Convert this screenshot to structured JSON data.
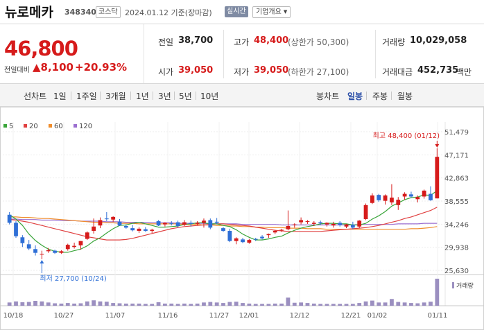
{
  "header": {
    "stock_name": "뉴로메카",
    "stock_code": "348340",
    "market": "코스닥",
    "date_text": "2024.01.12 기준(장마감)",
    "realtime_label": "실시간",
    "company_label": "기업개요"
  },
  "quote": {
    "price": "46,800",
    "change_label": "전일대비",
    "change_abs": "8,100",
    "change_pct": "+20.93%",
    "prev_label": "전일",
    "prev_value": "38,700",
    "high_label": "고가",
    "high_value": "48,400",
    "high_note": "(상한가 50,300)",
    "volume_label": "거래량",
    "volume_value": "10,029,058",
    "open_label": "시가",
    "open_value": "39,050",
    "low_label": "저가",
    "low_value": "39,050",
    "low_note": "(하한가 27,100)",
    "amount_label": "거래대금",
    "amount_value": "452,735",
    "amount_unit": "백만"
  },
  "periods": {
    "line_label": "선차트",
    "line_items": [
      "1일",
      "1주일",
      "3개월",
      "1년",
      "3년",
      "5년",
      "10년"
    ],
    "candle_label": "봉차트",
    "candle_items": [
      "일봉",
      "주봉",
      "월봉"
    ],
    "candle_active": "일봉"
  },
  "colors": {
    "up": "#d61b1b",
    "down": "#2f6fd6",
    "ma5": "#3aa53a",
    "ma20": "#e04040",
    "ma60": "#f08c2a",
    "ma120": "#9b6fd0",
    "volume": "#9b8fc0"
  },
  "chart_data": {
    "type": "candlestick",
    "legend": [
      "5",
      "20",
      "60",
      "120"
    ],
    "y_ticks": [
      "51,479",
      "47,171",
      "42,863",
      "38,555",
      "34,246",
      "29,938",
      "25,630"
    ],
    "ylim": [
      25630,
      51479
    ],
    "x_ticks": [
      "10/18",
      "10/27",
      "11/07",
      "11/16",
      "11/27",
      "12/01",
      "12/12",
      "12/21",
      "01/02",
      "01/11"
    ],
    "high_annotation": "최고 48,400 (01/12)",
    "low_annotation": "최저 27,700 (10/24)",
    "volume_label": "거래량",
    "candles": [
      {
        "o": 36000,
        "h": 36500,
        "l": 34200,
        "c": 34500
      },
      {
        "o": 34500,
        "h": 34800,
        "l": 31700,
        "c": 32000
      },
      {
        "o": 31800,
        "h": 32200,
        "l": 30000,
        "c": 30700
      },
      {
        "o": 30500,
        "h": 31300,
        "l": 29400,
        "c": 29700
      },
      {
        "o": 29600,
        "h": 30300,
        "l": 28400,
        "c": 28900
      },
      {
        "o": 28700,
        "h": 29300,
        "l": 27700,
        "c": 28700
      },
      {
        "o": 29200,
        "h": 29800,
        "l": 28900,
        "c": 29400
      },
      {
        "o": 29300,
        "h": 29500,
        "l": 28700,
        "c": 28900
      },
      {
        "o": 28900,
        "h": 29400,
        "l": 28700,
        "c": 29200
      },
      {
        "o": 29600,
        "h": 30600,
        "l": 29300,
        "c": 30400
      },
      {
        "o": 30000,
        "h": 30800,
        "l": 29700,
        "c": 30200
      },
      {
        "o": 30300,
        "h": 31100,
        "l": 29500,
        "c": 31100
      },
      {
        "o": 31500,
        "h": 32900,
        "l": 31300,
        "c": 32700
      },
      {
        "o": 33000,
        "h": 35300,
        "l": 32500,
        "c": 33800
      },
      {
        "o": 34000,
        "h": 35500,
        "l": 33500,
        "c": 35000
      },
      {
        "o": 35300,
        "h": 36500,
        "l": 34800,
        "c": 35200
      },
      {
        "o": 35100,
        "h": 35700,
        "l": 34700,
        "c": 35600
      },
      {
        "o": 34700,
        "h": 35200,
        "l": 33900,
        "c": 34000
      },
      {
        "o": 33900,
        "h": 34200,
        "l": 33400,
        "c": 33600
      },
      {
        "o": 33500,
        "h": 34100,
        "l": 32900,
        "c": 33100
      },
      {
        "o": 33000,
        "h": 33700,
        "l": 32600,
        "c": 33400
      },
      {
        "o": 33300,
        "h": 33700,
        "l": 32800,
        "c": 33000
      },
      {
        "o": 33000,
        "h": 33400,
        "l": 32600,
        "c": 33200
      },
      {
        "o": 34800,
        "h": 35000,
        "l": 33900,
        "c": 34000
      },
      {
        "o": 34200,
        "h": 34600,
        "l": 33800,
        "c": 34500
      },
      {
        "o": 34400,
        "h": 34800,
        "l": 34000,
        "c": 34300
      },
      {
        "o": 34600,
        "h": 34900,
        "l": 33600,
        "c": 33900
      },
      {
        "o": 34100,
        "h": 35000,
        "l": 33900,
        "c": 34600
      },
      {
        "o": 34500,
        "h": 34900,
        "l": 33800,
        "c": 34300
      },
      {
        "o": 34300,
        "h": 34800,
        "l": 34000,
        "c": 34500
      },
      {
        "o": 34500,
        "h": 35300,
        "l": 33600,
        "c": 34900
      },
      {
        "o": 35000,
        "h": 35300,
        "l": 33300,
        "c": 33600
      },
      {
        "o": 34700,
        "h": 35400,
        "l": 34200,
        "c": 34500
      },
      {
        "o": 33500,
        "h": 33700,
        "l": 32800,
        "c": 33000
      },
      {
        "o": 33000,
        "h": 33400,
        "l": 30900,
        "c": 31100
      },
      {
        "o": 31100,
        "h": 31800,
        "l": 30500,
        "c": 31600
      },
      {
        "o": 31400,
        "h": 31700,
        "l": 30700,
        "c": 30900
      },
      {
        "o": 30800,
        "h": 31500,
        "l": 30600,
        "c": 31300
      },
      {
        "o": 31500,
        "h": 31700,
        "l": 31100,
        "c": 31400
      },
      {
        "o": 31900,
        "h": 32200,
        "l": 31400,
        "c": 31600
      },
      {
        "o": 32200,
        "h": 32500,
        "l": 31700,
        "c": 32400
      },
      {
        "o": 32700,
        "h": 33200,
        "l": 32400,
        "c": 33000
      },
      {
        "o": 33100,
        "h": 33400,
        "l": 32800,
        "c": 33200
      },
      {
        "o": 33300,
        "h": 36800,
        "l": 33100,
        "c": 33900
      },
      {
        "o": 34100,
        "h": 34400,
        "l": 33600,
        "c": 34200
      },
      {
        "o": 34600,
        "h": 35500,
        "l": 34200,
        "c": 35000
      },
      {
        "o": 34700,
        "h": 35000,
        "l": 34300,
        "c": 34800
      },
      {
        "o": 34300,
        "h": 34800,
        "l": 33900,
        "c": 34500
      },
      {
        "o": 34600,
        "h": 34900,
        "l": 34100,
        "c": 34400
      },
      {
        "o": 34200,
        "h": 34600,
        "l": 33800,
        "c": 34500
      },
      {
        "o": 34000,
        "h": 34700,
        "l": 33600,
        "c": 34300
      },
      {
        "o": 34500,
        "h": 34800,
        "l": 33800,
        "c": 34100
      },
      {
        "o": 33800,
        "h": 34300,
        "l": 33500,
        "c": 34200
      },
      {
        "o": 34100,
        "h": 34700,
        "l": 33300,
        "c": 33600
      },
      {
        "o": 33800,
        "h": 35000,
        "l": 33500,
        "c": 34900
      },
      {
        "o": 35200,
        "h": 38100,
        "l": 35000,
        "c": 37800
      },
      {
        "o": 38200,
        "h": 40000,
        "l": 38000,
        "c": 39600
      },
      {
        "o": 39700,
        "h": 39900,
        "l": 38400,
        "c": 38700
      },
      {
        "o": 38600,
        "h": 39800,
        "l": 37900,
        "c": 39600
      },
      {
        "o": 38300,
        "h": 41700,
        "l": 37800,
        "c": 39200
      },
      {
        "o": 37800,
        "h": 39300,
        "l": 36900,
        "c": 38800
      },
      {
        "o": 39400,
        "h": 40200,
        "l": 38800,
        "c": 39900
      },
      {
        "o": 39800,
        "h": 40300,
        "l": 39200,
        "c": 39400
      },
      {
        "o": 38900,
        "h": 39600,
        "l": 38300,
        "c": 39300
      },
      {
        "o": 39400,
        "h": 40700,
        "l": 39000,
        "c": 40500
      },
      {
        "o": 39900,
        "h": 41300,
        "l": 38600,
        "c": 38700
      },
      {
        "o": 39050,
        "h": 48400,
        "l": 39050,
        "c": 46800
      }
    ],
    "volumes": [
      1.2,
      1.6,
      1.3,
      1.4,
      1.8,
      1.6,
      1.2,
      0.9,
      0.8,
      1.0,
      0.8,
      0.9,
      1.6,
      2.0,
      1.6,
      1.5,
      1.0,
      0.9,
      0.8,
      0.8,
      0.8,
      0.7,
      0.7,
      1.3,
      0.8,
      0.8,
      0.7,
      0.8,
      0.7,
      0.8,
      1.2,
      1.4,
      1.2,
      1.0,
      1.4,
      1.5,
      1.0,
      0.8,
      0.7,
      0.7,
      0.7,
      0.8,
      0.8,
      3.0,
      1.1,
      1.2,
      1.0,
      0.8,
      0.7,
      0.7,
      0.7,
      0.7,
      0.7,
      0.7,
      1.0,
      1.6,
      1.9,
      1.2,
      1.2,
      2.5,
      1.4,
      1.2,
      1.0,
      0.9,
      1.2,
      1.5,
      10.0
    ],
    "ma5": [
      36000,
      35200,
      34000,
      32400,
      31200,
      30300,
      29600,
      29200,
      29000,
      29000,
      29300,
      29600,
      30200,
      31100,
      31700,
      32600,
      33400,
      34000,
      34100,
      34400,
      34600,
      34300,
      34000,
      33700,
      33700,
      33800,
      33900,
      34200,
      34300,
      34500,
      34500,
      34300,
      34300,
      34000,
      33800,
      33200,
      32400,
      31800,
      31300,
      31300,
      31500,
      31800,
      32000,
      32600,
      33100,
      33500,
      33800,
      34000,
      34300,
      34400,
      34400,
      34300,
      34300,
      34100,
      34100,
      34400,
      35200,
      35800,
      36600,
      37600,
      38200,
      38800,
      39200,
      39300,
      39700,
      39600,
      40500
    ],
    "ma20": [
      35100,
      35000,
      34800,
      34600,
      34300,
      34000,
      33700,
      33400,
      33100,
      32800,
      32500,
      32200,
      31900,
      31700,
      31500,
      31300,
      31300,
      31300,
      31400,
      31600,
      31900,
      32200,
      32500,
      32800,
      33100,
      33400,
      33600,
      33800,
      33900,
      34000,
      34100,
      34200,
      34300,
      34300,
      34200,
      34100,
      34000,
      33900,
      33700,
      33500,
      33300,
      33100,
      33000,
      32900,
      32900,
      32900,
      32900,
      32900,
      32900,
      33000,
      33100,
      33200,
      33300,
      33400,
      33500,
      33600,
      33800,
      34000,
      34300,
      34600,
      34900,
      35300,
      35600,
      36000,
      36400,
      36800,
      37400
    ],
    "ma60": [
      35600,
      35600,
      35500,
      35500,
      35400,
      35300,
      35300,
      35200,
      35100,
      35000,
      34900,
      34800,
      34700,
      34600,
      34600,
      34500,
      34500,
      34400,
      34400,
      34400,
      34300,
      34300,
      34300,
      34300,
      34300,
      34300,
      34300,
      34200,
      34200,
      34200,
      34100,
      34100,
      34000,
      34000,
      33900,
      33900,
      33800,
      33800,
      33700,
      33700,
      33600,
      33600,
      33600,
      33500,
      33500,
      33500,
      33400,
      33400,
      33400,
      33300,
      33300,
      33300,
      33300,
      33300,
      33300,
      33300,
      33300,
      33300,
      33300,
      33300,
      33300,
      33300,
      33400,
      33400,
      33500,
      33600,
      33800
    ],
    "ma120": [
      35200,
      35200,
      35100,
      35100,
      35100,
      35000,
      35000,
      35000,
      34900,
      34900,
      34900,
      34800,
      34800,
      34800,
      34800,
      34700,
      34700,
      34700,
      34600,
      34600,
      34600,
      34600,
      34500,
      34500,
      34500,
      34500,
      34400,
      34400,
      34400,
      34400,
      34400,
      34300,
      34300,
      34300,
      34300,
      34300,
      34200,
      34200,
      34200,
      34200,
      34200,
      34200,
      34100,
      34100,
      34100,
      34100,
      34100,
      34100,
      34100,
      34100,
      34100,
      34100,
      34100,
      34100,
      34200,
      34200,
      34200,
      34200,
      34200,
      34200,
      34300,
      34300,
      34300,
      34300,
      34400,
      34400,
      34400
    ]
  }
}
